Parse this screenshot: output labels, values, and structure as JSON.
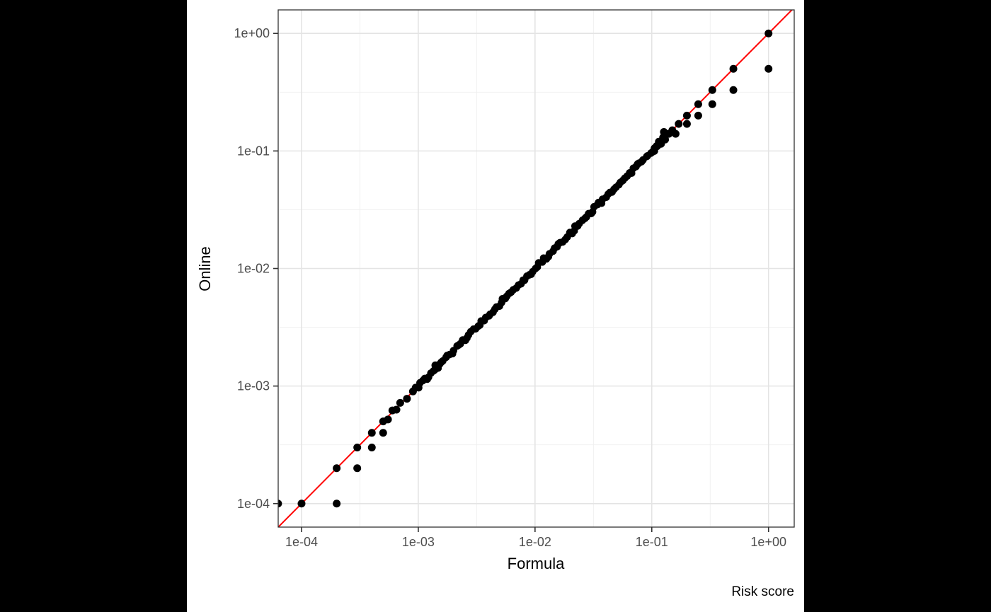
{
  "window": {
    "outer_background": "#000000",
    "plot_background": "#ffffff"
  },
  "chart_data": {
    "type": "scatter",
    "title": "",
    "xlabel": "Formula",
    "ylabel": "Online",
    "caption": "Risk score",
    "x_scale": "log10",
    "y_scale": "log10",
    "xlim_log10": [
      -4.2,
      0.22
    ],
    "ylim_log10": [
      -4.2,
      0.2
    ],
    "grid": "on",
    "legend": "none",
    "x_axis": {
      "title": "Formula",
      "tick_labels": [
        "1e-04",
        "1e-03",
        "1e-02",
        "1e-01",
        "1e+00"
      ],
      "tick_log10": [
        -4,
        -3,
        -2,
        -1,
        0
      ],
      "minor_grid_log10": [
        -3.5,
        -2.5,
        -1.5,
        -0.5
      ]
    },
    "y_axis": {
      "title": "Online",
      "tick_labels": [
        "1e-04",
        "1e-03",
        "1e-02",
        "1e-01",
        "1e+00"
      ],
      "tick_log10": [
        -4,
        -3,
        -2,
        -1,
        0
      ],
      "minor_grid_log10": [
        -3.5,
        -2.5,
        -1.5,
        -0.5
      ]
    },
    "reference_line": {
      "equation": "y = x",
      "color": "#ff0000",
      "width": 2
    },
    "points": [
      [
        6.3e-05,
        0.0001
      ],
      [
        0.0001,
        0.0001
      ],
      [
        0.0002,
        0.0001
      ],
      [
        0.0002,
        0.0002
      ],
      [
        0.0003,
        0.0002
      ],
      [
        0.0003,
        0.0003
      ],
      [
        0.0004,
        0.0003
      ],
      [
        0.0004,
        0.0004
      ],
      [
        0.0005,
        0.0004
      ],
      [
        0.0005,
        0.0005
      ],
      [
        0.00055,
        0.00052
      ],
      [
        0.0006,
        0.00062
      ],
      [
        0.00065,
        0.00063
      ],
      [
        0.0007,
        0.00072
      ],
      [
        0.0008,
        0.00078
      ],
      [
        0.0009,
        0.0009
      ],
      [
        0.00095,
        0.00097
      ],
      [
        0.0014,
        0.0015
      ],
      [
        0.105,
        0.1
      ],
      [
        0.11,
        0.11
      ],
      [
        0.115,
        0.12
      ],
      [
        0.12,
        0.115
      ],
      [
        0.125,
        0.13
      ],
      [
        0.127,
        0.145
      ],
      [
        0.13,
        0.125
      ],
      [
        0.13,
        0.14
      ],
      [
        0.14,
        0.14
      ],
      [
        0.15,
        0.15
      ],
      [
        0.16,
        0.14
      ],
      [
        0.17,
        0.17
      ],
      [
        0.2,
        0.17
      ],
      [
        0.2,
        0.2
      ],
      [
        0.25,
        0.2
      ],
      [
        0.25,
        0.25
      ],
      [
        0.33,
        0.25
      ],
      [
        0.33,
        0.33
      ],
      [
        0.5,
        0.33
      ],
      [
        0.5,
        0.5
      ],
      [
        1.0,
        0.5
      ],
      [
        1.0,
        1.0
      ]
    ],
    "dense_band": {
      "note": "continuous run of overlapping points along y=x between ~1e-03 and ~1.15e-01",
      "log10_from": -3.02,
      "log10_to": -0.94,
      "count": 115,
      "jitter_log10": 0.015
    },
    "point_style": {
      "color": "#000000",
      "radius": 5.5
    },
    "colors": {
      "major_grid": "#e4e4e4",
      "minor_grid": "#efefef",
      "panel_border": "#333333",
      "tick_mark": "#333333",
      "tick_label": "#4d4d4d",
      "axis_title": "#000000",
      "caption": "#000000"
    }
  }
}
